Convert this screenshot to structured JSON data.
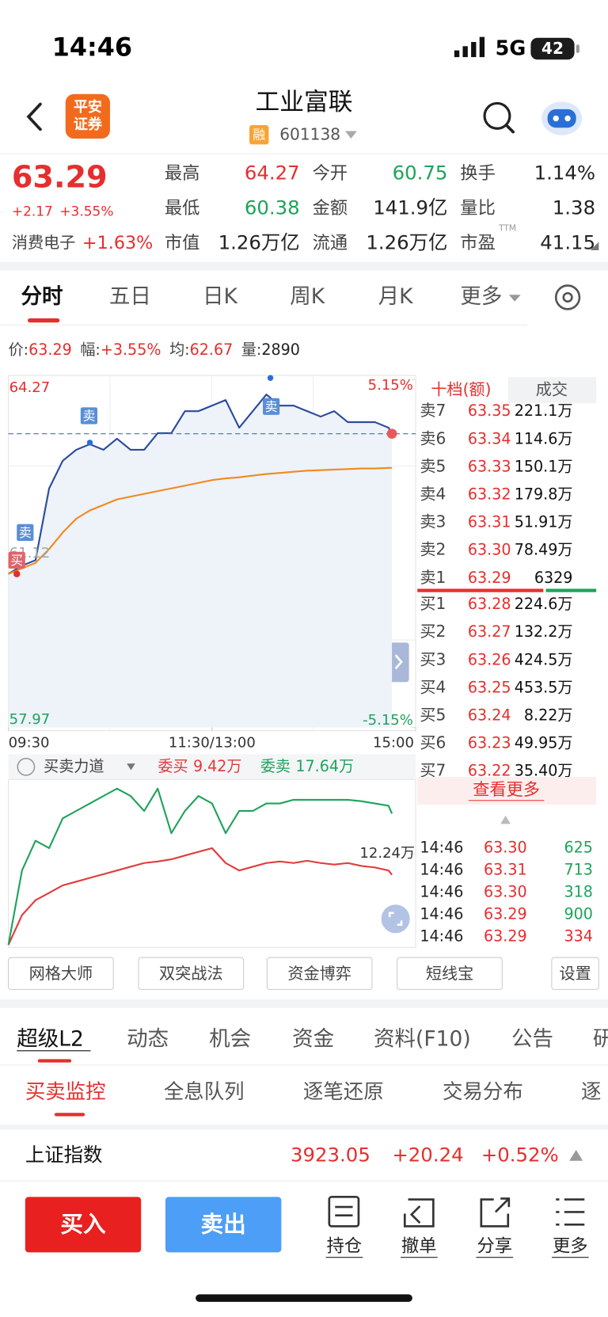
{
  "status_bar": {
    "time": "14:46",
    "network": "5G",
    "battery": "42"
  },
  "header": {
    "logo": [
      "平安",
      "证券"
    ],
    "title": "工业富联",
    "tag": "融",
    "code": "601138"
  },
  "quote": {
    "price": "63.29",
    "change": "+2.17",
    "change_pct": "+3.55%",
    "sector": "消费电子",
    "sector_change": "+1.63%",
    "stats": [
      [
        {
          "label": "最高",
          "value": "64.27"
        },
        {
          "label": "今开",
          "value": "60.75"
        },
        {
          "label": "换手",
          "value": "1.14%"
        }
      ],
      [
        {
          "label": "最低",
          "value": "60.38"
        },
        {
          "label": "金额",
          "value": "141.9亿"
        },
        {
          "label": "量比",
          "value": "1.38"
        }
      ],
      [
        {
          "label": "市值",
          "value": "1.26万亿"
        },
        {
          "label": "流通",
          "value": "1.26万亿"
        },
        {
          "label": "市盈",
          "value": "41.15",
          "sup": "TTM"
        }
      ]
    ]
  },
  "period_tabs": [
    "分时",
    "五日",
    "日K",
    "周K",
    "月K",
    "更多"
  ],
  "info_line": [
    {
      "label": "价:",
      "value": "63.29"
    },
    {
      "label": "幅:",
      "value": "+3.55%"
    },
    {
      "label": "均:",
      "value": "62.67"
    },
    {
      "label": "量:",
      "value": "2890"
    }
  ],
  "chart_data": [
    {
      "type": "line",
      "x": [
        0,
        8,
        16,
        24,
        32,
        40,
        48,
        56,
        64,
        72,
        80,
        88,
        96,
        104,
        112,
        120,
        128,
        136,
        144,
        152,
        160,
        168,
        176,
        184,
        192,
        200,
        208,
        216,
        224,
        226
      ],
      "xlim": [
        0,
        240
      ],
      "xticks": [
        {
          "value": 0,
          "label": "09:30"
        },
        {
          "value": 120,
          "label": "11:30/13:00"
        },
        {
          "value": 240,
          "label": "15:00"
        }
      ],
      "ylim": [
        57.97,
        64.27
      ],
      "yticks": [
        57.97,
        61.12,
        64.27
      ],
      "y2lim": [
        -5.15,
        5.15
      ],
      "y2ticks": [
        {
          "value": 5.15,
          "label": "5.15%"
        },
        {
          "value": -5.15,
          "label": "-5.15%"
        }
      ],
      "series": [
        {
          "name": "价",
          "color": "#2b4a9b",
          "values": [
            60.75,
            60.9,
            61.0,
            62.3,
            62.8,
            63.0,
            63.1,
            63.0,
            63.2,
            63.0,
            63.0,
            63.3,
            63.3,
            63.7,
            63.7,
            63.8,
            63.9,
            63.4,
            63.7,
            64.0,
            63.8,
            63.8,
            63.7,
            63.6,
            63.7,
            63.5,
            63.5,
            63.5,
            63.4,
            63.29
          ]
        },
        {
          "name": "均",
          "color": "#f08a1c",
          "values": [
            60.75,
            60.85,
            60.95,
            61.2,
            61.5,
            61.75,
            61.9,
            62.0,
            62.1,
            62.15,
            62.2,
            62.25,
            62.3,
            62.35,
            62.4,
            62.45,
            62.48,
            62.5,
            62.53,
            62.56,
            62.58,
            62.6,
            62.62,
            62.63,
            62.64,
            62.65,
            62.66,
            62.66,
            62.67,
            62.67
          ]
        }
      ],
      "annotations": [
        "卖",
        "卖",
        "卖",
        "买"
      ]
    },
    {
      "type": "line",
      "title": "买卖力道",
      "x": [
        0,
        8,
        16,
        24,
        32,
        40,
        48,
        56,
        64,
        72,
        80,
        88,
        96,
        104,
        112,
        120,
        128,
        136,
        144,
        152,
        160,
        168,
        176,
        184,
        192,
        200,
        208,
        216,
        224,
        226
      ],
      "xlim": [
        0,
        240
      ],
      "ylim": [
        0,
        22
      ],
      "yticks": [
        {
          "value": 12.24,
          "label": "12.24万"
        }
      ],
      "series": [
        {
          "name": "委买",
          "color": "#e23b3b",
          "values": [
            0,
            4,
            6,
            7,
            8,
            8.5,
            9,
            9.5,
            10,
            10.5,
            11,
            11.2,
            11.5,
            12,
            12.5,
            13,
            11,
            10,
            10.5,
            11,
            11.2,
            11,
            11.3,
            11,
            10.8,
            11,
            10.6,
            10.4,
            10,
            9.42
          ],
          "value_labels": [
            null,
            null,
            null,
            null,
            null,
            null,
            null,
            null,
            null,
            null,
            null,
            null,
            null,
            null,
            null,
            null,
            null,
            null,
            null,
            null,
            null,
            null,
            null,
            null,
            null,
            null,
            null,
            null,
            null,
            "9.42万"
          ]
        },
        {
          "name": "委卖",
          "color": "#1ea35a",
          "values": [
            0,
            10,
            14,
            13,
            17,
            18,
            19,
            20,
            21,
            20,
            18,
            21,
            15,
            18,
            20,
            19,
            15,
            18,
            18,
            19,
            19,
            19.5,
            19.5,
            19.5,
            19.5,
            19.5,
            19.3,
            19,
            18.7,
            17.64
          ],
          "value_labels": [
            null,
            null,
            null,
            null,
            null,
            null,
            null,
            null,
            null,
            null,
            null,
            null,
            null,
            null,
            null,
            null,
            null,
            null,
            null,
            null,
            null,
            null,
            null,
            null,
            null,
            null,
            null,
            null,
            null,
            "17.64万"
          ]
        }
      ]
    }
  ],
  "order_book": {
    "tabs": [
      "十档(额)",
      "成交"
    ],
    "asks": [
      {
        "label": "卖7",
        "price": "63.35",
        "volume": "221.1万"
      },
      {
        "label": "卖6",
        "price": "63.34",
        "volume": "114.6万"
      },
      {
        "label": "卖5",
        "price": "63.33",
        "volume": "150.1万"
      },
      {
        "label": "卖4",
        "price": "63.32",
        "volume": "179.8万"
      },
      {
        "label": "卖3",
        "price": "63.31",
        "volume": "51.91万"
      },
      {
        "label": "卖2",
        "price": "63.30",
        "volume": "78.49万"
      },
      {
        "label": "卖1",
        "price": "63.29",
        "volume": "6329"
      }
    ],
    "bids": [
      {
        "label": "买1",
        "price": "63.28",
        "volume": "224.6万"
      },
      {
        "label": "买2",
        "price": "63.27",
        "volume": "132.2万"
      },
      {
        "label": "买3",
        "price": "63.26",
        "volume": "424.5万"
      },
      {
        "label": "买4",
        "price": "63.25",
        "volume": "453.5万"
      },
      {
        "label": "买5",
        "price": "63.24",
        "volume": "8.22万"
      },
      {
        "label": "买6",
        "price": "63.23",
        "volume": "49.95万"
      },
      {
        "label": "买7",
        "price": "63.22",
        "volume": "35.40万"
      }
    ],
    "more": "查看更多"
  },
  "trades": [
    {
      "time": "14:46",
      "price": "63.30",
      "volume": "625"
    },
    {
      "time": "14:46",
      "price": "63.31",
      "volume": "713"
    },
    {
      "time": "14:46",
      "price": "63.30",
      "volume": "318"
    },
    {
      "time": "14:46",
      "price": "63.29",
      "volume": "900"
    },
    {
      "time": "14:46",
      "price": "63.29",
      "volume": "334"
    }
  ],
  "tools": [
    "网格大师",
    "双突战法",
    "资金博弈",
    "短线宝",
    "设置"
  ],
  "detail_tabs": [
    "超级L2",
    "动态",
    "机会",
    "资金",
    "资料(F10)",
    "公告",
    "研"
  ],
  "sub_tabs": [
    "买卖监控",
    "全息队列",
    "逐笔还原",
    "交易分布",
    "逐"
  ],
  "index_bar": {
    "name": "上证指数",
    "value": "3923.05",
    "change": "+20.24",
    "change_pct": "+0.52%"
  },
  "actions": {
    "buy": "买入",
    "sell": "卖出",
    "tools": [
      "持仓",
      "撤单",
      "分享",
      "更多"
    ]
  }
}
